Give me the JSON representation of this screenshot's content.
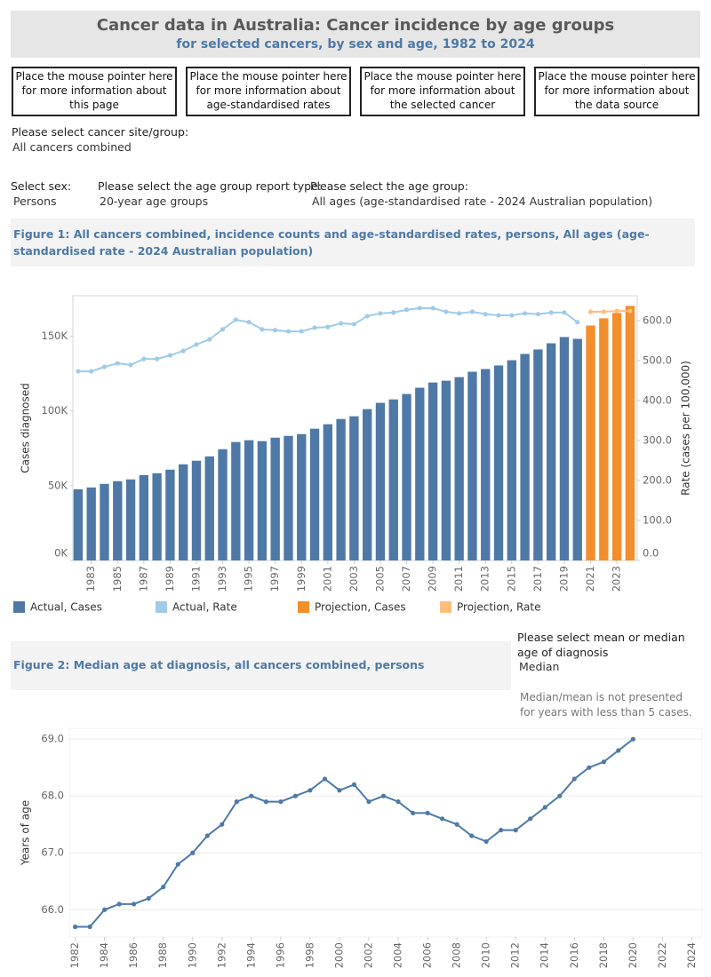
{
  "header": {
    "title": "Cancer data in Australia: Cancer incidence by age groups",
    "subtitle": "for selected cancers, by sex and age, 1982 to 2024"
  },
  "buttons": [
    "Place the mouse pointer here for more information about this page",
    "Place the mouse pointer here for more information about age-standardised rates",
    "Place the mouse pointer here for more information about the selected cancer",
    "Place the mouse pointer here for more information about the data source"
  ],
  "filters": {
    "site_label": "Please select cancer site/group:",
    "site_value": "All cancers combined",
    "sex_label": "Select sex:",
    "sex_value": "Persons",
    "report_type_label": "Please select the age group report type:",
    "report_type_value": "20-year age groups",
    "age_group_label": "Please select the age group:",
    "age_group_value": "All ages (age-standardised rate - 2024 Australian population)"
  },
  "measure_selector": {
    "label": "Please select mean or median age of diagnosis",
    "value": "Median",
    "note": "Median/mean is not presented for years with less than 5 cases."
  },
  "chart_data": [
    {
      "type": "combo",
      "title": "Figure 1: All cancers combined, incidence counts and age-standardised rates, persons, All ages (age-standardised rate - 2024 Australian population)",
      "ylabel": "Cases diagnosed",
      "y2label": "Rate (cases per 100,000)",
      "grid": false,
      "legend": "bottom",
      "x": [
        1982,
        1983,
        1984,
        1985,
        1986,
        1987,
        1988,
        1989,
        1990,
        1991,
        1992,
        1993,
        1994,
        1995,
        1996,
        1997,
        1998,
        1999,
        2000,
        2001,
        2002,
        2003,
        2004,
        2005,
        2006,
        2007,
        2008,
        2009,
        2010,
        2011,
        2012,
        2013,
        2014,
        2015,
        2016,
        2017,
        2018,
        2019,
        2020,
        2021,
        2022,
        2023,
        2024
      ],
      "xlim": [
        1981.6,
        2024.55
      ],
      "xticks": [
        1983,
        1985,
        1987,
        1989,
        1991,
        1993,
        1995,
        1997,
        1999,
        2001,
        2003,
        2005,
        2007,
        2009,
        2011,
        2013,
        2015,
        2017,
        2019,
        2021,
        2023
      ],
      "ylim": [
        0,
        177000
      ],
      "yticks": [
        {
          "value": 0,
          "label": "0K"
        },
        {
          "value": 50000,
          "label": "50K"
        },
        {
          "value": 100000,
          "label": "100K"
        },
        {
          "value": 150000,
          "label": "150K"
        }
      ],
      "y2lim": [
        0,
        662
      ],
      "y2ticks": [
        {
          "value": 0,
          "label": "0.0"
        },
        {
          "value": 100,
          "label": "100.0"
        },
        {
          "value": 200,
          "label": "200.0"
        },
        {
          "value": 300,
          "label": "300.0"
        },
        {
          "value": 400,
          "label": "400.0"
        },
        {
          "value": 500,
          "label": "500.0"
        },
        {
          "value": 600,
          "label": "600.0"
        }
      ],
      "series": [
        {
          "name": "Actual, Cases",
          "type": "bar",
          "color": "#4e79a7",
          "values": [
            47600,
            48800,
            51200,
            53000,
            54200,
            57100,
            58300,
            60700,
            64300,
            66700,
            69600,
            74400,
            79200,
            80400,
            79800,
            82100,
            83300,
            84500,
            88100,
            91100,
            94600,
            96400,
            101200,
            105400,
            107700,
            111300,
            115500,
            119000,
            120200,
            122600,
            126200,
            128000,
            130400,
            133900,
            138100,
            141100,
            145200,
            149400,
            148200,
            null,
            null,
            null,
            null
          ]
        },
        {
          "name": "Actual, Rate",
          "type": "line",
          "axis": "y2",
          "color": "#a0cbe8",
          "values": [
            473,
            473,
            484,
            493,
            489,
            504,
            504,
            513,
            524,
            540,
            553,
            578,
            602,
            596,
            578,
            576,
            573,
            573,
            582,
            584,
            593,
            591,
            611,
            618,
            620,
            627,
            631,
            631,
            622,
            618,
            622,
            616,
            613,
            613,
            618,
            616,
            620,
            620,
            596,
            null,
            null,
            null,
            null
          ]
        },
        {
          "name": "Projection, Cases",
          "type": "bar",
          "color": "#f28e2b",
          "values": [
            null,
            null,
            null,
            null,
            null,
            null,
            null,
            null,
            null,
            null,
            null,
            null,
            null,
            null,
            null,
            null,
            null,
            null,
            null,
            null,
            null,
            null,
            null,
            null,
            null,
            null,
            null,
            null,
            null,
            null,
            null,
            null,
            null,
            null,
            null,
            null,
            null,
            null,
            null,
            157100,
            161900,
            165500,
            170200
          ]
        },
        {
          "name": "Projection, Rate",
          "type": "line",
          "axis": "y2",
          "color": "#ffbe7d",
          "values": [
            null,
            null,
            null,
            null,
            null,
            null,
            null,
            null,
            null,
            null,
            null,
            null,
            null,
            null,
            null,
            null,
            null,
            null,
            null,
            null,
            null,
            null,
            null,
            null,
            null,
            null,
            null,
            null,
            null,
            null,
            null,
            null,
            null,
            null,
            null,
            null,
            null,
            null,
            null,
            622,
            622,
            624,
            624
          ]
        }
      ]
    },
    {
      "type": "line",
      "title": "Figure 2: Median age at diagnosis, all cancers combined, persons",
      "ylabel": "Years of age",
      "grid": true,
      "color": "#4e79a7",
      "x": [
        1982,
        1983,
        1984,
        1985,
        1986,
        1987,
        1988,
        1989,
        1990,
        1991,
        1992,
        1993,
        1994,
        1995,
        1996,
        1997,
        1998,
        1999,
        2000,
        2001,
        2002,
        2003,
        2004,
        2005,
        2006,
        2007,
        2008,
        2009,
        2010,
        2011,
        2012,
        2013,
        2014,
        2015,
        2016,
        2017,
        2018,
        2019,
        2020
      ],
      "values": [
        65.7,
        65.7,
        66.0,
        66.1,
        66.1,
        66.2,
        66.4,
        66.8,
        67.0,
        67.3,
        67.5,
        67.9,
        68.0,
        67.9,
        67.9,
        68.0,
        68.1,
        68.3,
        68.1,
        68.2,
        67.9,
        68.0,
        67.9,
        67.7,
        67.7,
        67.6,
        67.5,
        67.3,
        67.2,
        67.4,
        67.4,
        67.6,
        67.8,
        68.0,
        68.3,
        68.5,
        68.6,
        68.8,
        69.0
      ],
      "xlim": [
        1981.6,
        2024.7
      ],
      "xticks": [
        1982,
        1984,
        1986,
        1988,
        1990,
        1992,
        1994,
        1996,
        1998,
        2000,
        2002,
        2004,
        2006,
        2008,
        2010,
        2012,
        2014,
        2016,
        2018,
        2020,
        2022,
        2024
      ],
      "ylim": [
        65.52,
        69.19
      ],
      "yticks": [
        {
          "value": 66,
          "label": "66.0"
        },
        {
          "value": 67,
          "label": "67.0"
        },
        {
          "value": 68,
          "label": "68.0"
        },
        {
          "value": 69,
          "label": "69.0"
        }
      ]
    }
  ]
}
